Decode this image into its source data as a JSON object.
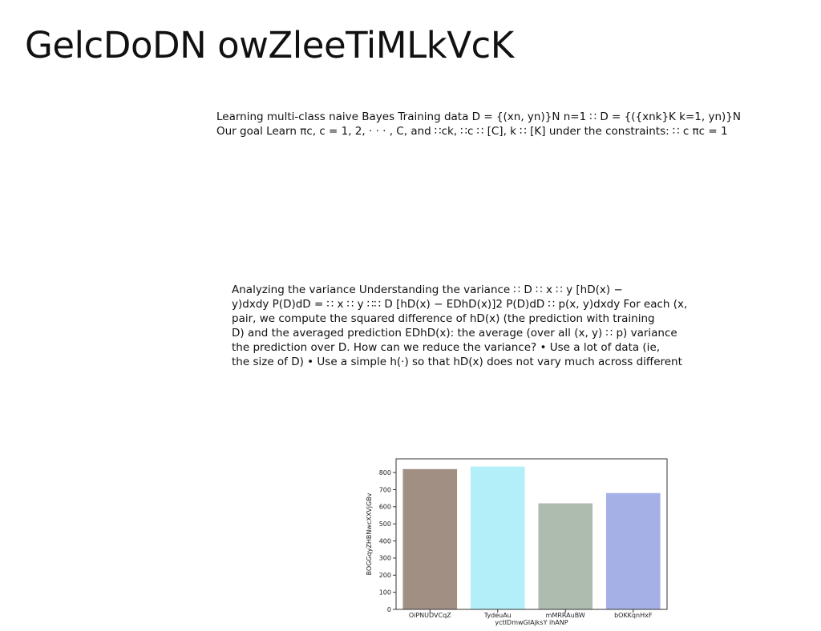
{
  "slide": {
    "title": "GelcDoDN owZleeTiMLkVcK"
  },
  "blocks": [
    {
      "lines": [
        "Learning multi-class naive Bayes Training data D = {(xn, yn)}N n=1 ∷ D = {({xnk}K k=1, yn)}N",
        "Our goal Learn πc, c = 1, 2, · · · , C, and ∷ck, ∷c ∷ [C], k ∷ [K] under the constraints: ∷ c πc = 1"
      ]
    },
    {
      "lines": [
        "Analyzing the variance Understanding the variance ∷ D ∷ x ∷ y [hD(x) −",
        "y)dxdy P(D)dD = ∷ x ∷ y ∷∷ D [hD(x) − EDhD(x)]2 P(D)dD ∷ p(x, y)dxdy For each (x,",
        "pair, we compute the squared difference of hD(x) (the prediction with training",
        "D) and the averaged prediction EDhD(x): the average (over all (x, y) ∷ p) variance",
        "the prediction over D. How can we reduce the variance? • Use a lot of data (ie,",
        "the size of D) • Use a simple h(·) so that hD(x) does not vary much across different"
      ]
    }
  ],
  "chart_data": {
    "type": "bar",
    "categories": [
      "OiPNUDVCqZ",
      "TydeuAu",
      "mMRRAuBW",
      "bOKKqnHxF"
    ],
    "values": [
      820,
      835,
      620,
      680
    ],
    "colors": [
      "#a28f84",
      "#b2eff8",
      "#adbcaf",
      "#a4b0e6"
    ],
    "xlabel": "yctIDmwGIAjksY ihANP",
    "ylabel": "BOGGqyZHBNwcXXVjGBv",
    "ylim": [
      0,
      880
    ],
    "yticks": [
      0,
      100,
      200,
      300,
      400,
      500,
      600,
      700,
      800
    ],
    "grid": false,
    "legend": false
  }
}
